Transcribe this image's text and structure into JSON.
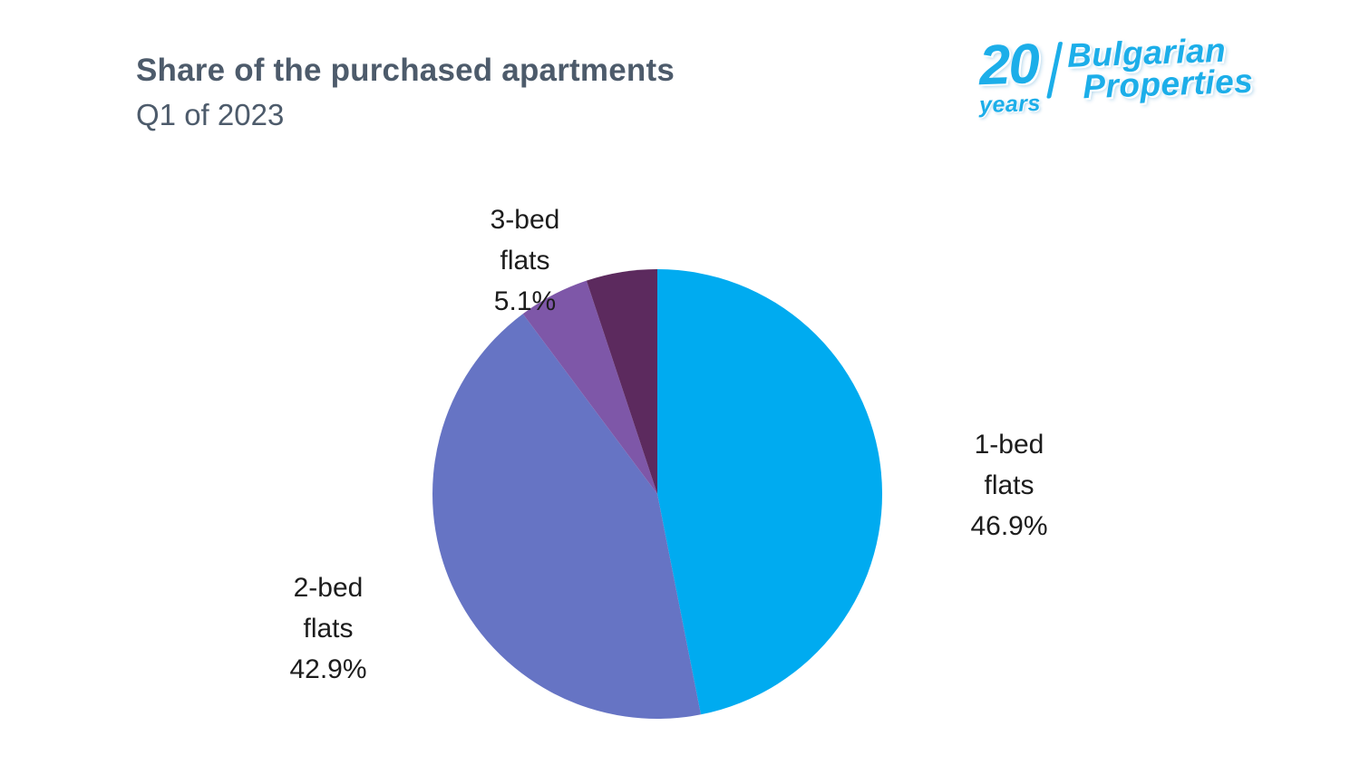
{
  "header": {
    "title": "Share of the purchased apartments",
    "subtitle": "Q1 of 2023"
  },
  "logo": {
    "years_number": "20",
    "years_word": "years",
    "brand_line1": "Bulgarian",
    "brand_line2": "Properties",
    "brand_color": "#1caee9"
  },
  "chart_data": {
    "type": "pie",
    "title": "Share of the purchased apartments",
    "subtitle": "Q1 of 2023",
    "legend_position": "none",
    "direction": "clockwise",
    "start_angle": "12 o'clock",
    "slices": [
      {
        "label": "1-bed flats",
        "label_line1": "1-bed",
        "label_line2": "flats",
        "pct_label": "46.9%",
        "value": 46.9,
        "color": "#00abf0"
      },
      {
        "label": "2-bed flats",
        "label_line1": "2-bed",
        "label_line2": "flats",
        "pct_label": "42.9%",
        "value": 42.9,
        "color": "#6674c4"
      },
      {
        "label": "3-bed flats",
        "label_line1": "3-bed",
        "label_line2": "flats",
        "pct_label": "5.1%",
        "value": 5.1,
        "color": "#7e57a8"
      },
      {
        "label": "",
        "label_line1": "",
        "label_line2": "",
        "pct_label": "",
        "value": 5.1,
        "color": "#5c2a5e"
      }
    ]
  }
}
